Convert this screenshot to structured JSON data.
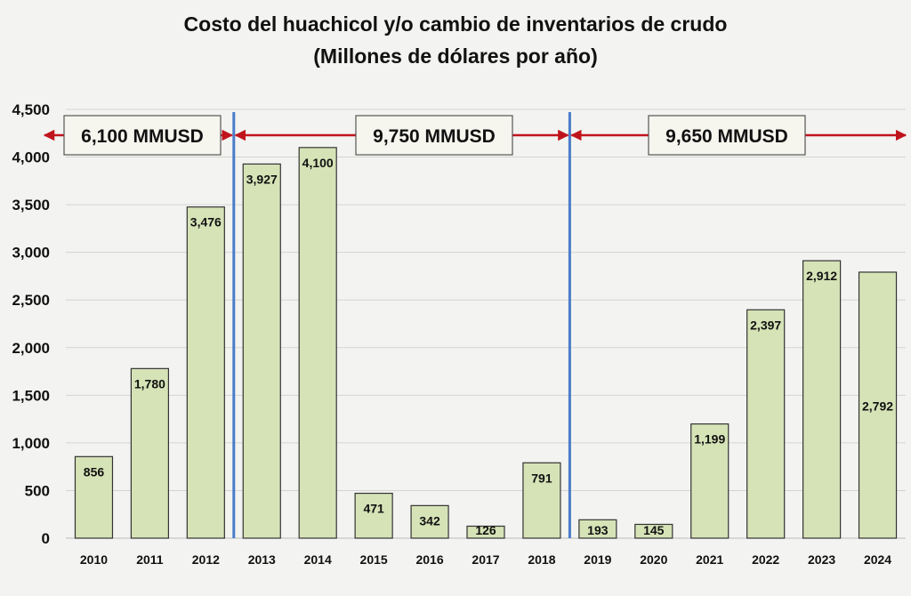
{
  "chart_data": {
    "type": "bar",
    "title": "Costo del huachicol y/o cambio de inventarios de crudo",
    "subtitle": "(Millones de dólares por año)",
    "categories": [
      "2010",
      "2011",
      "2012",
      "2013",
      "2014",
      "2015",
      "2016",
      "2017",
      "2018",
      "2019",
      "2020",
      "2021",
      "2022",
      "2023",
      "2024"
    ],
    "values": [
      856,
      1780,
      3476,
      3927,
      4100,
      471,
      342,
      126,
      791,
      193,
      145,
      1199,
      2397,
      2912,
      2792
    ],
    "value_labels": [
      "856",
      "1,780",
      "3,476",
      "3,927",
      "4,100",
      "471",
      "342",
      "126",
      "791",
      "193",
      "145",
      "1,199",
      "2,397",
      "2,912",
      "2,792"
    ],
    "ylim": [
      0,
      4500
    ],
    "yticks": [
      0,
      500,
      1000,
      1500,
      2000,
      2500,
      3000,
      3500,
      4000,
      4500
    ],
    "ytick_labels": [
      "0",
      "500",
      "1,000",
      "1,500",
      "2,000",
      "2,500",
      "3,000",
      "3,500",
      "4,000",
      "4,500"
    ],
    "grid": true,
    "bar_color": "#d6e3b7",
    "bar_border": "#333333",
    "periods": [
      {
        "label": "6,100 MMUSD",
        "from": "2010",
        "to": "2012"
      },
      {
        "label": "9,750 MMUSD",
        "from": "2013",
        "to": "2018"
      },
      {
        "label": "9,650 MMUSD",
        "from": "2019",
        "to": "2024"
      }
    ],
    "separator_color": "#4a7cc9",
    "arrow_color": "#c0141c"
  }
}
